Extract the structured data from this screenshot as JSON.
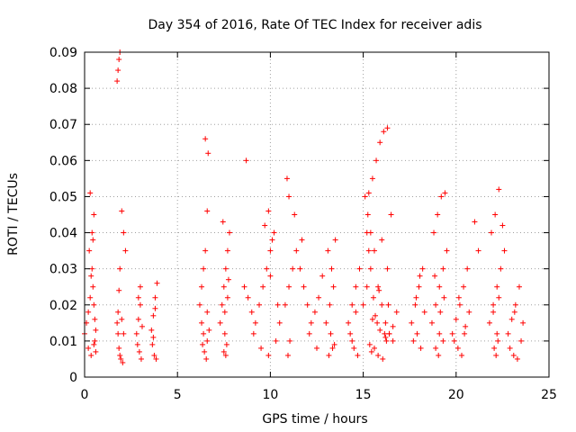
{
  "chart_data": {
    "type": "scatter",
    "title": "Day 354 of 2016, Rate Of TEC Index for receiver adis",
    "xlabel": "GPS time / hours",
    "ylabel": "ROTI / TECUs",
    "xlim": [
      0,
      25
    ],
    "ylim": [
      0,
      0.09
    ],
    "x_ticks": [
      0,
      5,
      10,
      15,
      20,
      25
    ],
    "x_tick_labels": [
      "0",
      "5",
      "10",
      "15",
      "20",
      "25"
    ],
    "y_ticks": [
      0,
      0.01,
      0.02,
      0.03,
      0.04,
      0.05,
      0.06,
      0.07,
      0.08,
      0.09
    ],
    "y_tick_labels": [
      "0",
      "0.01",
      "0.02",
      "0.03",
      "0.04",
      "0.05",
      "0.06",
      "0.07",
      "0.08",
      "0.09"
    ],
    "grid": true,
    "marker": "+",
    "series": [
      {
        "name": "ROTI",
        "color": "#ff0000",
        "x": [
          0.0,
          0.1,
          0.2,
          0.3,
          0.35,
          0.4,
          0.45,
          0.5,
          0.55,
          0.6,
          0.25,
          0.4,
          0.5,
          0.3,
          0.45,
          0.55,
          0.2,
          0.35,
          0.5,
          0.6,
          1.75,
          1.8,
          1.85,
          1.9,
          2.0,
          2.1,
          2.2,
          1.8,
          1.85,
          1.9,
          1.95,
          2.05,
          1.8,
          1.85,
          1.9,
          1.75,
          2.0,
          2.1,
          2.8,
          2.9,
          3.0,
          3.1,
          2.85,
          2.95,
          3.05,
          2.9,
          3.0,
          3.6,
          3.7,
          3.8,
          3.9,
          3.65,
          3.75,
          3.85,
          3.7,
          3.8,
          6.2,
          6.3,
          6.4,
          6.5,
          6.6,
          6.7,
          6.35,
          6.45,
          6.55,
          6.6,
          6.65,
          6.5,
          6.3,
          6.4,
          6.6,
          7.3,
          7.4,
          7.5,
          7.6,
          7.7,
          7.8,
          7.45,
          7.55,
          7.65,
          7.5,
          7.6,
          7.7,
          7.55,
          7.75,
          8.6,
          8.8,
          9.0,
          9.2,
          9.4,
          9.6,
          9.8,
          10.0,
          10.2,
          9.9,
          9.7,
          10.1,
          8.7,
          9.1,
          9.5,
          9.9,
          10.3,
          10.5,
          10.4,
          10.0,
          10.8,
          11.0,
          11.2,
          11.4,
          11.6,
          11.8,
          12.0,
          12.2,
          12.4,
          12.6,
          12.8,
          11.0,
          10.9,
          11.3,
          11.7,
          12.1,
          12.5,
          10.95,
          11.05,
          13.0,
          13.2,
          13.4,
          13.3,
          13.1,
          13.5,
          13.25,
          13.35,
          13.15,
          13.45,
          14.2,
          14.4,
          14.6,
          14.8,
          14.3,
          14.5,
          14.7,
          14.4,
          14.6,
          15.0,
          15.2,
          15.4,
          15.6,
          15.8,
          16.0,
          16.2,
          16.4,
          16.6,
          16.8,
          15.3,
          15.5,
          15.7,
          15.9,
          16.1,
          16.3,
          16.5,
          15.2,
          15.3,
          15.1,
          15.25,
          15.4,
          16.0,
          16.3,
          16.4,
          15.6,
          15.8,
          16.6,
          15.5,
          15.9,
          16.2,
          15.35,
          15.45,
          16.05,
          16.25,
          15.75,
          16.15,
          15.65,
          16.35,
          15.55,
          15.85,
          17.6,
          17.8,
          18.0,
          18.2,
          17.9,
          18.1,
          17.7,
          18.3,
          17.85,
          18.05,
          18.7,
          18.9,
          19.1,
          19.3,
          19.5,
          18.8,
          19.0,
          19.2,
          19.4,
          19.1,
          18.9,
          19.3,
          19.15,
          19.35,
          18.85,
          19.05,
          19.8,
          20.0,
          20.2,
          20.4,
          20.6,
          19.9,
          20.1,
          20.3,
          20.5,
          20.7,
          21.0,
          21.2,
          20.15,
          20.45,
          21.8,
          22.0,
          22.2,
          22.4,
          22.6,
          21.9,
          22.1,
          22.3,
          22.5,
          22.2,
          22.05,
          22.15,
          22.25,
          22.0,
          22.3,
          22.8,
          23.0,
          23.2,
          23.4,
          23.6,
          22.9,
          23.1,
          23.3,
          23.5,
          23.15
        ],
        "y": [
          0.012,
          0.015,
          0.018,
          0.022,
          0.028,
          0.03,
          0.025,
          0.02,
          0.016,
          0.013,
          0.035,
          0.04,
          0.045,
          0.051,
          0.038,
          0.01,
          0.008,
          0.006,
          0.009,
          0.007,
          0.082,
          0.085,
          0.088,
          0.09,
          0.046,
          0.04,
          0.035,
          0.012,
          0.008,
          0.006,
          0.005,
          0.004,
          0.018,
          0.024,
          0.03,
          0.015,
          0.016,
          0.012,
          0.012,
          0.016,
          0.02,
          0.014,
          0.009,
          0.007,
          0.005,
          0.022,
          0.025,
          0.013,
          0.017,
          0.022,
          0.026,
          0.009,
          0.006,
          0.005,
          0.011,
          0.019,
          0.02,
          0.025,
          0.03,
          0.035,
          0.018,
          0.013,
          0.009,
          0.007,
          0.005,
          0.046,
          0.062,
          0.066,
          0.015,
          0.012,
          0.01,
          0.015,
          0.02,
          0.025,
          0.03,
          0.035,
          0.04,
          0.043,
          0.012,
          0.009,
          0.007,
          0.006,
          0.022,
          0.018,
          0.027,
          0.025,
          0.022,
          0.018,
          0.015,
          0.02,
          0.025,
          0.03,
          0.035,
          0.04,
          0.046,
          0.042,
          0.038,
          0.06,
          0.012,
          0.008,
          0.006,
          0.01,
          0.015,
          0.02,
          0.028,
          0.02,
          0.025,
          0.03,
          0.035,
          0.03,
          0.025,
          0.02,
          0.015,
          0.018,
          0.022,
          0.028,
          0.05,
          0.055,
          0.045,
          0.038,
          0.012,
          0.008,
          0.006,
          0.01,
          0.015,
          0.02,
          0.025,
          0.03,
          0.035,
          0.038,
          0.012,
          0.008,
          0.006,
          0.009,
          0.015,
          0.02,
          0.025,
          0.03,
          0.012,
          0.008,
          0.006,
          0.01,
          0.018,
          0.02,
          0.025,
          0.03,
          0.035,
          0.025,
          0.02,
          0.015,
          0.012,
          0.01,
          0.018,
          0.051,
          0.055,
          0.06,
          0.065,
          0.068,
          0.069,
          0.045,
          0.04,
          0.035,
          0.05,
          0.045,
          0.04,
          0.038,
          0.03,
          0.012,
          0.008,
          0.006,
          0.014,
          0.016,
          0.013,
          0.011,
          0.009,
          0.007,
          0.005,
          0.01,
          0.015,
          0.012,
          0.017,
          0.02,
          0.022,
          0.024,
          0.015,
          0.02,
          0.025,
          0.03,
          0.012,
          0.008,
          0.01,
          0.018,
          0.022,
          0.028,
          0.015,
          0.02,
          0.025,
          0.03,
          0.035,
          0.04,
          0.045,
          0.05,
          0.051,
          0.012,
          0.008,
          0.01,
          0.018,
          0.022,
          0.028,
          0.006,
          0.012,
          0.016,
          0.02,
          0.025,
          0.03,
          0.01,
          0.008,
          0.006,
          0.014,
          0.018,
          0.043,
          0.035,
          0.022,
          0.012,
          0.015,
          0.02,
          0.025,
          0.03,
          0.035,
          0.04,
          0.045,
          0.052,
          0.042,
          0.012,
          0.008,
          0.006,
          0.01,
          0.018,
          0.022,
          0.012,
          0.016,
          0.02,
          0.025,
          0.015,
          0.008,
          0.006,
          0.005,
          0.01,
          0.018
        ]
      }
    ]
  }
}
